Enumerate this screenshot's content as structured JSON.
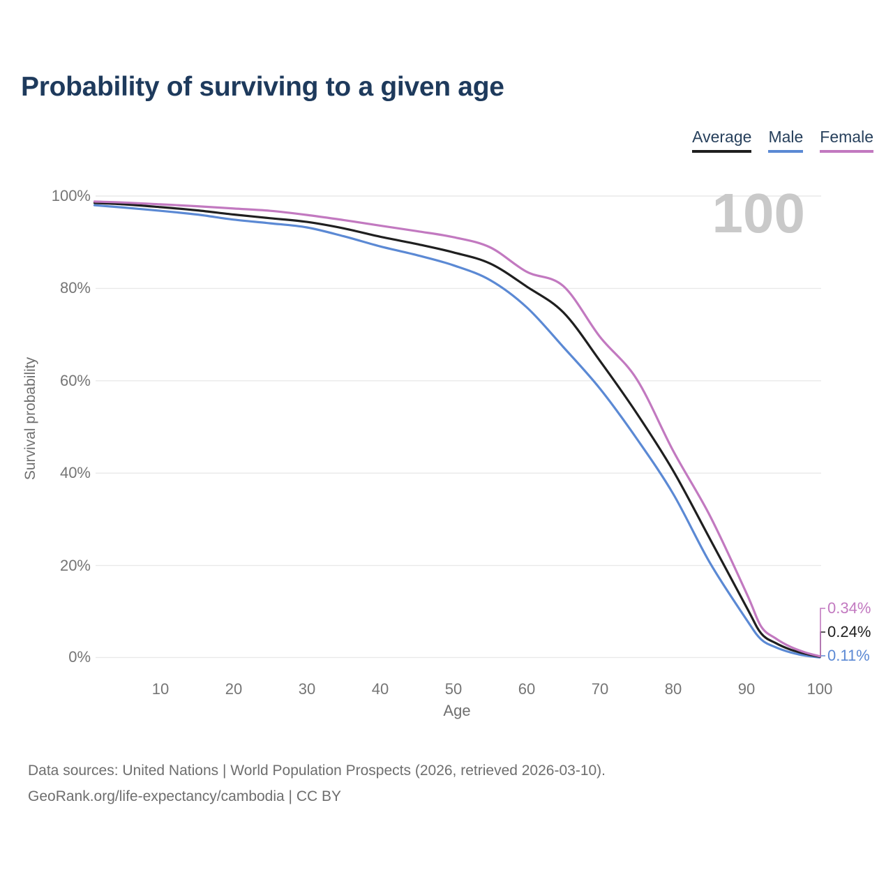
{
  "header": {
    "title": "Probability of surviving to a given age"
  },
  "legend": {
    "items": [
      {
        "label": "Average",
        "color": "#1f1f1f"
      },
      {
        "label": "Male",
        "color": "#5b89d4"
      },
      {
        "label": "Female",
        "color": "#c279c0"
      }
    ]
  },
  "watermark": "100",
  "axes": {
    "x": {
      "label": "Age",
      "ticks": [
        {
          "label": "10",
          "value": 10
        },
        {
          "label": "20",
          "value": 20
        },
        {
          "label": "30",
          "value": 30
        },
        {
          "label": "40",
          "value": 40
        },
        {
          "label": "50",
          "value": 50
        },
        {
          "label": "60",
          "value": 60
        },
        {
          "label": "70",
          "value": 70
        },
        {
          "label": "80",
          "value": 80
        },
        {
          "label": "90",
          "value": 90
        },
        {
          "label": "100",
          "value": 100
        }
      ]
    },
    "y": {
      "label": "Survival probability",
      "ticks": [
        {
          "label": "0%",
          "value": 0
        },
        {
          "label": "20%",
          "value": 20
        },
        {
          "label": "40%",
          "value": 40
        },
        {
          "label": "60%",
          "value": 60
        },
        {
          "label": "80%",
          "value": 80
        },
        {
          "label": "100%",
          "value": 100
        }
      ]
    }
  },
  "footer": {
    "line1": "Data sources: United Nations | World Population Prospects (2026, retrieved 2026-03-10).",
    "line2": "GeoRank.org/life-expectancy/cambodia | CC BY"
  },
  "chart_data": {
    "type": "line",
    "title": "Probability of surviving to a given age",
    "xlabel": "Age",
    "ylabel": "Survival probability",
    "xlim": [
      1,
      100
    ],
    "ylim": [
      0,
      100
    ],
    "grid": "horizontal",
    "legend_position": "top-right",
    "x": [
      1,
      5,
      10,
      15,
      20,
      25,
      30,
      35,
      40,
      45,
      50,
      55,
      60,
      65,
      70,
      75,
      80,
      85,
      90,
      92,
      94,
      96,
      98,
      100
    ],
    "series": [
      {
        "name": "Average",
        "color": "#1f1f1f",
        "end_label": "0.24%",
        "values": [
          98.5,
          98.2,
          97.6,
          96.9,
          96.0,
          95.2,
          94.4,
          93.0,
          91.2,
          89.6,
          87.8,
          85.4,
          80.4,
          74.8,
          64.3,
          53.0,
          40.5,
          25.8,
          11.0,
          5.3,
          3.2,
          1.8,
          0.9,
          0.24
        ]
      },
      {
        "name": "Male",
        "color": "#5b89d4",
        "end_label": "0.11%",
        "values": [
          98.0,
          97.5,
          96.8,
          96.0,
          94.9,
          94.1,
          93.2,
          91.3,
          89.1,
          87.2,
          85.0,
          81.8,
          75.9,
          67.3,
          58.3,
          47.5,
          35.5,
          20.6,
          8.3,
          4.0,
          2.3,
          1.2,
          0.5,
          0.11
        ]
      },
      {
        "name": "Female",
        "color": "#c279c0",
        "end_label": "0.34%",
        "values": [
          98.8,
          98.6,
          98.2,
          97.8,
          97.3,
          96.8,
          95.9,
          94.8,
          93.6,
          92.4,
          91.1,
          88.9,
          83.6,
          80.5,
          69.5,
          60.4,
          44.8,
          30.8,
          14.0,
          6.8,
          4.2,
          2.4,
          1.2,
          0.34
        ]
      }
    ]
  }
}
